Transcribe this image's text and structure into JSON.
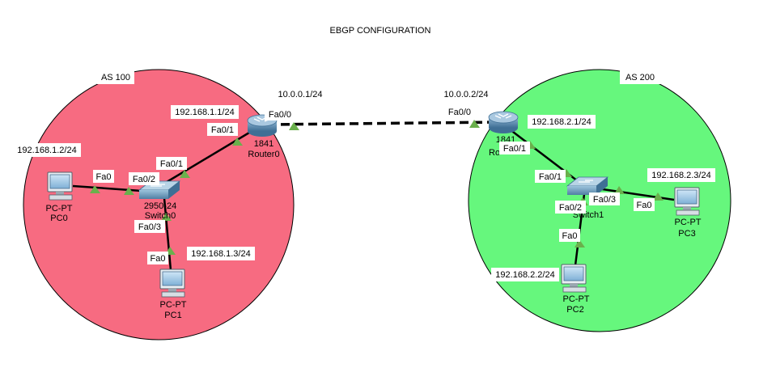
{
  "title": "EBGP CONFIGURATION",
  "colors": {
    "as100_fill": "#f76b81",
    "as200_fill": "#66f77d",
    "link": "#000000",
    "port_indicator": "#6ab04c",
    "label_bg": "#ffffff",
    "device_blue": "#5b8fb5"
  },
  "areas": {
    "as100": {
      "label": "AS 100"
    },
    "as200": {
      "label": "AS 200"
    }
  },
  "devices": {
    "router0": {
      "model": "1841",
      "name": "Router0",
      "icon": "router-icon"
    },
    "router1": {
      "model": "1841",
      "name": "Ro",
      "icon": "router-icon"
    },
    "switch0": {
      "model": "2950-24",
      "name": "Switch0",
      "icon": "switch-icon"
    },
    "switch1": {
      "model": "",
      "name": "Switch1",
      "icon": "switch-icon"
    },
    "pc0": {
      "model": "PC-PT",
      "name": "PC0",
      "icon": "pc-icon"
    },
    "pc1": {
      "model": "PC-PT",
      "name": "PC1",
      "icon": "pc-icon"
    },
    "pc2": {
      "model": "PC-PT",
      "name": "PC2",
      "icon": "pc-icon"
    },
    "pc3": {
      "model": "PC-PT",
      "name": "PC3",
      "icon": "pc-icon"
    }
  },
  "ip_labels": {
    "router0_fa00": "10.0.0.1/24",
    "router1_fa00": "10.0.0.2/24",
    "router0_fa01": "192.168.1.1/24",
    "router1_fa01": "192.168.2.1/24",
    "pc0": "192.168.1.2/24",
    "pc1": "192.168.1.3/24",
    "pc2": "192.168.2.2/24",
    "pc3": "192.168.2.3/24"
  },
  "port_labels": {
    "r0_fa00": "Fa0/0",
    "r0_fa01": "Fa0/1",
    "r1_fa00": "Fa0/0",
    "r1_fa01": "Fa0/1",
    "sw0_fa01": "Fa0/1",
    "sw0_fa02": "Fa0/2",
    "sw0_fa03": "Fa0/3",
    "sw1_fa01": "Fa0/1",
    "sw1_fa02": "Fa0/2",
    "sw1_fa03": "Fa0/3",
    "pc0_fa0": "Fa0",
    "pc1_fa0": "Fa0",
    "pc2_fa0": "Fa0",
    "pc3_fa0": "Fa0"
  }
}
